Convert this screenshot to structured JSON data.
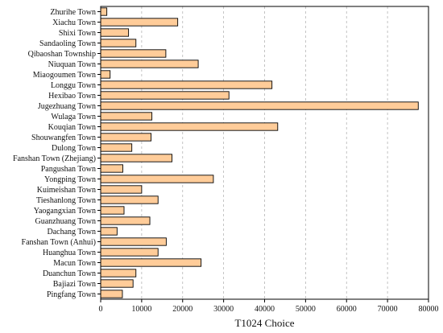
{
  "chart_data": {
    "type": "bar",
    "orientation": "horizontal",
    "title": "",
    "xlabel": "T1024 Choice",
    "ylabel": "",
    "xlim": [
      0,
      80000
    ],
    "xticks": [
      0,
      10000,
      20000,
      30000,
      40000,
      50000,
      60000,
      70000,
      80000
    ],
    "grid": "vertical dashed",
    "bar_color": "#FFCC99",
    "bar_edge_color": "#000000",
    "categories": [
      "Zhurihe Town",
      "Xiachu Town",
      "Shixi Town",
      "Sandaoling Town",
      "Qibaoshan Township",
      "Niuquan Town",
      "Miaogoumen Town",
      "Longgu Town",
      "Hexibao Town",
      "Jugezhuang Town",
      "Wulaga Town",
      "Kouqian Town",
      "Shouwangfen Town",
      "Dulong Town",
      "Fanshan Town (Zhejiang)",
      "Pangushan Town",
      "Yongping Town",
      "Kuimeishan Town",
      "Tieshanlong Town",
      "Yaogangxian Town",
      "Guanzhuang Town",
      "Dachang Town",
      "Fanshan Town (Anhui)",
      "Huanghua Town",
      "Macun Town",
      "Duanchun Town",
      "Bajiazi Town",
      "Pingfang Town"
    ],
    "values": [
      1500,
      18800,
      6800,
      8600,
      15900,
      23800,
      2300,
      41800,
      31300,
      77500,
      12500,
      43200,
      12300,
      7600,
      17400,
      5400,
      27500,
      10000,
      14000,
      5700,
      12000,
      4000,
      16000,
      14000,
      24500,
      8600,
      7900,
      5300
    ]
  }
}
